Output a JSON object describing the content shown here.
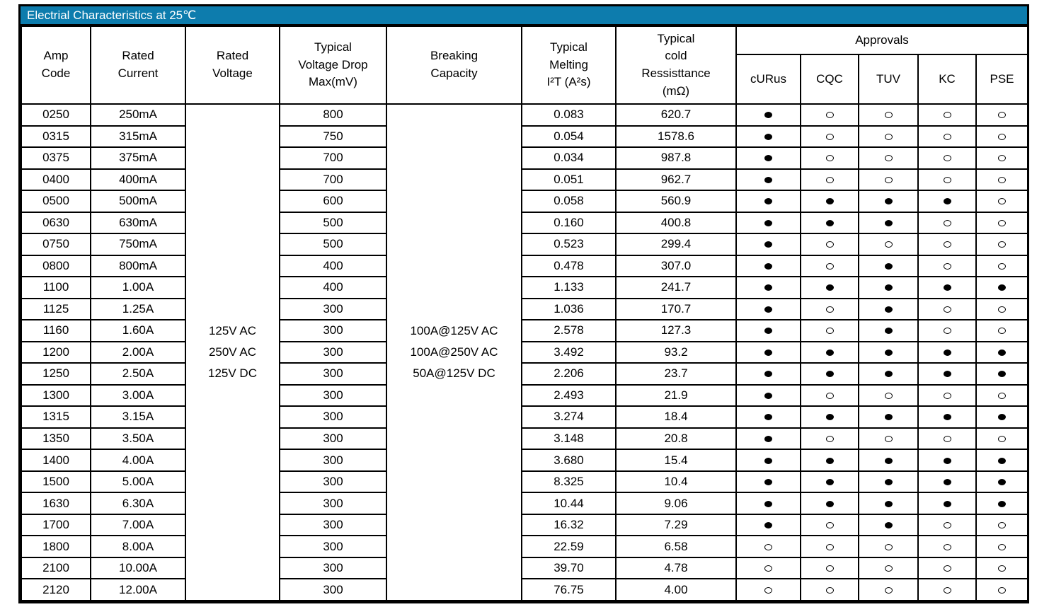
{
  "title": "Electrial Characteristics at 25℃",
  "colors": {
    "title_bar": "#0d7cad",
    "title_text": "#ffffff",
    "border": "#000000",
    "background": "#ffffff"
  },
  "table": {
    "headers": {
      "amp_code": "Amp\nCode",
      "rated_current": "Rated\nCurrent",
      "rated_voltage": "Rated\nVoltage",
      "voltage_drop": "Typical\nVoltage Drop\nMax(mV)",
      "breaking_capacity": "Breaking\nCapacity",
      "melting_i2t": "Typical\nMelting\nI²T (A²s)",
      "cold_resistance": "Typical\ncold\nRessisttance\n(mΩ)",
      "approvals": "Approvals"
    },
    "approval_columns": [
      "cURus",
      "CQC",
      "TUV",
      "KC",
      "PSE"
    ],
    "rated_voltage": "125V AC\n250V AC\n125V DC",
    "breaking_capacity": "100A@125V AC\n100A@250V AC\n50A@125V DC",
    "approval_marks": {
      "filled": "●",
      "open": "○"
    },
    "rows": [
      {
        "amp_code": "0250",
        "rated_current": "250mA",
        "voltage_drop": "800",
        "i2t": "0.083",
        "cold_resistance": "620.7",
        "approvals": [
          1,
          0,
          0,
          0,
          0
        ]
      },
      {
        "amp_code": "0315",
        "rated_current": "315mA",
        "voltage_drop": "750",
        "i2t": "0.054",
        "cold_resistance": "1578.6",
        "approvals": [
          1,
          0,
          0,
          0,
          0
        ]
      },
      {
        "amp_code": "0375",
        "rated_current": "375mA",
        "voltage_drop": "700",
        "i2t": "0.034",
        "cold_resistance": "987.8",
        "approvals": [
          1,
          0,
          0,
          0,
          0
        ]
      },
      {
        "amp_code": "0400",
        "rated_current": "400mA",
        "voltage_drop": "700",
        "i2t": "0.051",
        "cold_resistance": "962.7",
        "approvals": [
          1,
          0,
          0,
          0,
          0
        ]
      },
      {
        "amp_code": "0500",
        "rated_current": "500mA",
        "voltage_drop": "600",
        "i2t": "0.058",
        "cold_resistance": "560.9",
        "approvals": [
          1,
          1,
          1,
          1,
          0
        ]
      },
      {
        "amp_code": "0630",
        "rated_current": "630mA",
        "voltage_drop": "500",
        "i2t": "0.160",
        "cold_resistance": "400.8",
        "approvals": [
          1,
          1,
          1,
          0,
          0
        ]
      },
      {
        "amp_code": "0750",
        "rated_current": "750mA",
        "voltage_drop": "500",
        "i2t": "0.523",
        "cold_resistance": "299.4",
        "approvals": [
          1,
          0,
          0,
          0,
          0
        ]
      },
      {
        "amp_code": "0800",
        "rated_current": "800mA",
        "voltage_drop": "400",
        "i2t": "0.478",
        "cold_resistance": "307.0",
        "approvals": [
          1,
          0,
          1,
          0,
          0
        ]
      },
      {
        "amp_code": "1100",
        "rated_current": "1.00A",
        "voltage_drop": "400",
        "i2t": "1.133",
        "cold_resistance": "241.7",
        "approvals": [
          1,
          1,
          1,
          1,
          1
        ]
      },
      {
        "amp_code": "1125",
        "rated_current": "1.25A",
        "voltage_drop": "300",
        "i2t": "1.036",
        "cold_resistance": "170.7",
        "approvals": [
          1,
          0,
          1,
          0,
          0
        ]
      },
      {
        "amp_code": "1160",
        "rated_current": "1.60A",
        "voltage_drop": "300",
        "i2t": "2.578",
        "cold_resistance": "127.3",
        "approvals": [
          1,
          0,
          1,
          0,
          0
        ]
      },
      {
        "amp_code": "1200",
        "rated_current": "2.00A",
        "voltage_drop": "300",
        "i2t": "3.492",
        "cold_resistance": "93.2",
        "approvals": [
          1,
          1,
          1,
          1,
          1
        ]
      },
      {
        "amp_code": "1250",
        "rated_current": "2.50A",
        "voltage_drop": "300",
        "i2t": "2.206",
        "cold_resistance": "23.7",
        "approvals": [
          1,
          1,
          1,
          1,
          1
        ]
      },
      {
        "amp_code": "1300",
        "rated_current": "3.00A",
        "voltage_drop": "300",
        "i2t": "2.493",
        "cold_resistance": "21.9",
        "approvals": [
          1,
          0,
          0,
          0,
          0
        ]
      },
      {
        "amp_code": "1315",
        "rated_current": "3.15A",
        "voltage_drop": "300",
        "i2t": "3.274",
        "cold_resistance": "18.4",
        "approvals": [
          1,
          1,
          1,
          1,
          1
        ]
      },
      {
        "amp_code": "1350",
        "rated_current": "3.50A",
        "voltage_drop": "300",
        "i2t": "3.148",
        "cold_resistance": "20.8",
        "approvals": [
          1,
          0,
          0,
          0,
          0
        ]
      },
      {
        "amp_code": "1400",
        "rated_current": "4.00A",
        "voltage_drop": "300",
        "i2t": "3.680",
        "cold_resistance": "15.4",
        "approvals": [
          1,
          1,
          1,
          1,
          1
        ]
      },
      {
        "amp_code": "1500",
        "rated_current": "5.00A",
        "voltage_drop": "300",
        "i2t": "8.325",
        "cold_resistance": "10.4",
        "approvals": [
          1,
          1,
          1,
          1,
          1
        ]
      },
      {
        "amp_code": "1630",
        "rated_current": "6.30A",
        "voltage_drop": "300",
        "i2t": "10.44",
        "cold_resistance": "9.06",
        "approvals": [
          1,
          1,
          1,
          1,
          1
        ]
      },
      {
        "amp_code": "1700",
        "rated_current": "7.00A",
        "voltage_drop": "300",
        "i2t": "16.32",
        "cold_resistance": "7.29",
        "approvals": [
          1,
          0,
          1,
          0,
          0
        ]
      },
      {
        "amp_code": "1800",
        "rated_current": "8.00A",
        "voltage_drop": "300",
        "i2t": "22.59",
        "cold_resistance": "6.58",
        "approvals": [
          0,
          0,
          0,
          0,
          0
        ]
      },
      {
        "amp_code": "2100",
        "rated_current": "10.00A",
        "voltage_drop": "300",
        "i2t": "39.70",
        "cold_resistance": "4.78",
        "approvals": [
          0,
          0,
          0,
          0,
          0
        ]
      },
      {
        "amp_code": "2120",
        "rated_current": "12.00A",
        "voltage_drop": "300",
        "i2t": "76.75",
        "cold_resistance": "4.00",
        "approvals": [
          0,
          0,
          0,
          0,
          0
        ]
      }
    ]
  }
}
